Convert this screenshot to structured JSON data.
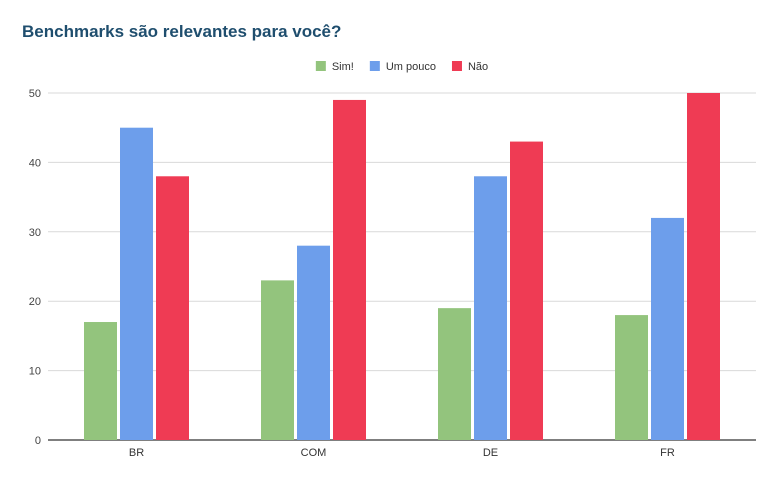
{
  "chart_data": {
    "type": "bar",
    "title": "Benchmarks são relevantes para você?",
    "xlabel": "",
    "ylabel": "",
    "categories": [
      "BR",
      "COM",
      "DE",
      "FR"
    ],
    "series": [
      {
        "name": "Sim!",
        "color": "#93c47d",
        "values": [
          17,
          23,
          19,
          18
        ]
      },
      {
        "name": "Um pouco",
        "color": "#6d9eeb",
        "values": [
          45,
          28,
          38,
          32
        ]
      },
      {
        "name": "Não",
        "color": "#ef3b54",
        "values": [
          38,
          49,
          43,
          50
        ]
      }
    ],
    "ylim": [
      0,
      50
    ],
    "yticks": [
      0,
      10,
      20,
      30,
      40,
      50
    ],
    "grid": true,
    "legend_position": "top-center"
  }
}
